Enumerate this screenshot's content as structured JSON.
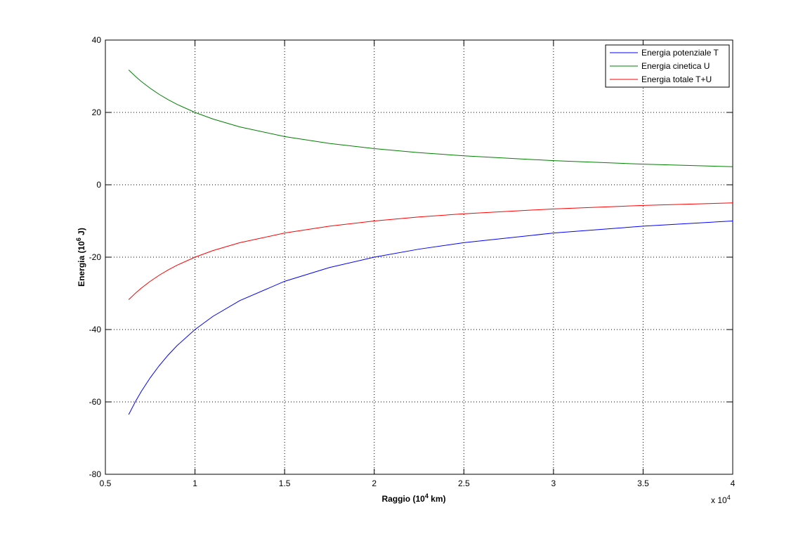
{
  "chart_data": {
    "type": "line",
    "xlabel": [
      "Raggio (10",
      "4",
      " km)"
    ],
    "ylabel": [
      "Energia (10",
      "6",
      " J)"
    ],
    "x_multiplier": [
      "x 10",
      "4"
    ],
    "x": [
      0.63,
      0.67,
      0.7,
      0.75,
      0.8,
      0.85,
      0.9,
      1,
      1.1,
      1.25,
      1.5,
      1.75,
      2,
      2.25,
      2.5,
      3,
      3.5,
      4
    ],
    "series": [
      {
        "name": "Energia potenziale T",
        "color": "#0000ff",
        "values": [
          -63.49,
          -59.7,
          -57.14,
          -53.33,
          -50,
          -47.06,
          -44.44,
          -40,
          -36.36,
          -32,
          -26.67,
          -22.86,
          -20,
          -17.78,
          -16,
          -13.33,
          -11.43,
          -10
        ]
      },
      {
        "name": "Energia cinetica U",
        "color": "#008000",
        "values": [
          31.75,
          29.85,
          28.57,
          26.67,
          25,
          23.53,
          22.22,
          20,
          18.18,
          16,
          13.33,
          11.43,
          10,
          8.89,
          8,
          6.67,
          5.71,
          5
        ]
      },
      {
        "name": "Energia totale T+U",
        "color": "#ff0000",
        "values": [
          -31.75,
          -29.85,
          -28.57,
          -26.67,
          -25,
          -23.53,
          -22.22,
          -20,
          -18.18,
          -16,
          -13.33,
          -11.43,
          -10,
          -8.89,
          -8,
          -6.67,
          -5.71,
          -5
        ]
      }
    ],
    "xlim": [
      0.5,
      4
    ],
    "ylim": [
      -80,
      40
    ],
    "xticks": [
      0.5,
      1,
      1.5,
      2,
      2.5,
      3,
      3.5,
      4
    ],
    "yticks": [
      -80,
      -60,
      -40,
      -20,
      0,
      20,
      40
    ],
    "grid": true,
    "legend": "top-right"
  }
}
